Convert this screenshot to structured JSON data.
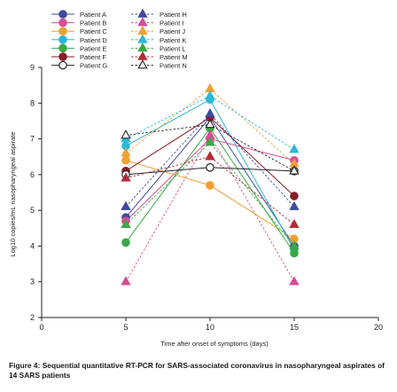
{
  "caption": {
    "prefix": "Figure 4: ",
    "text": "Sequential quantitative RT-PCR for SARS-associated coronavirus in nasopharyngeal aspirates of 14 SARS patients"
  },
  "chart_data": {
    "type": "line",
    "title": "",
    "xlabel": "Time after onset of symptoms (days)",
    "ylabel": "Log10 copies/mL nasopharyngeal aspirate",
    "xlim": [
      0,
      20
    ],
    "ylim": [
      2,
      9
    ],
    "xticks": [
      0,
      5,
      10,
      15,
      20
    ],
    "yticks": [
      2,
      3,
      4,
      5,
      6,
      7,
      8,
      9
    ],
    "legend_position": "top-left",
    "series": [
      {
        "name": "Patient A",
        "color": "#3b4a9c",
        "marker": "circle",
        "style": "solid",
        "x": [
          5,
          10,
          15
        ],
        "y": [
          4.8,
          7.6,
          4.0
        ]
      },
      {
        "name": "Patient B",
        "color": "#d94b96",
        "marker": "circle",
        "style": "solid",
        "x": [
          5,
          10,
          15
        ],
        "y": [
          4.7,
          7.0,
          6.4
        ]
      },
      {
        "name": "Patient C",
        "color": "#f0a030",
        "marker": "circle",
        "style": "solid",
        "x": [
          5,
          10,
          15
        ],
        "y": [
          6.4,
          5.7,
          4.2
        ]
      },
      {
        "name": "Patient D",
        "color": "#2ab8d6",
        "marker": "circle",
        "style": "solid",
        "x": [
          5,
          10,
          15
        ],
        "y": [
          6.8,
          8.1,
          3.9
        ]
      },
      {
        "name": "Patient E",
        "color": "#39a845",
        "marker": "circle",
        "style": "solid",
        "x": [
          5,
          10,
          15
        ],
        "y": [
          4.1,
          7.3,
          3.8
        ]
      },
      {
        "name": "Patient F",
        "color": "#8a1c2a",
        "marker": "circle",
        "style": "solid",
        "x": [
          5,
          10,
          15
        ],
        "y": [
          6.1,
          7.6,
          5.4
        ]
      },
      {
        "name": "Patient G",
        "color": "#222222",
        "marker": "circle-open",
        "style": "solid",
        "x": [
          5,
          10,
          15
        ],
        "y": [
          6.0,
          6.2,
          6.1
        ]
      },
      {
        "name": "Patient H",
        "color": "#3b4a9c",
        "marker": "triangle",
        "style": "dashed",
        "x": [
          5,
          10,
          15
        ],
        "y": [
          5.1,
          7.7,
          5.1
        ]
      },
      {
        "name": "Patient I",
        "color": "#d94b96",
        "marker": "triangle",
        "style": "dashed",
        "x": [
          5,
          10,
          15
        ],
        "y": [
          3.0,
          7.1,
          3.0
        ]
      },
      {
        "name": "Patient J",
        "color": "#f0a030",
        "marker": "triangle",
        "style": "dashed",
        "x": [
          5,
          10,
          15
        ],
        "y": [
          6.6,
          8.4,
          6.3
        ]
      },
      {
        "name": "Patient K",
        "color": "#2ab8d6",
        "marker": "triangle",
        "style": "dashed",
        "x": [
          5,
          10,
          15
        ],
        "y": [
          7.0,
          8.2,
          6.7
        ]
      },
      {
        "name": "Patient L",
        "color": "#39a845",
        "marker": "triangle",
        "style": "dashed",
        "x": [
          5,
          10,
          15
        ],
        "y": [
          4.6,
          6.9,
          4.0
        ]
      },
      {
        "name": "Patient M",
        "color": "#b52a35",
        "marker": "triangle",
        "style": "dashed",
        "x": [
          5,
          10,
          15
        ],
        "y": [
          5.9,
          6.5,
          4.6
        ]
      },
      {
        "name": "Patient N",
        "color": "#222222",
        "marker": "triangle-open",
        "style": "dashed",
        "x": [
          5,
          10,
          15
        ],
        "y": [
          7.1,
          7.4,
          6.1
        ]
      }
    ]
  }
}
